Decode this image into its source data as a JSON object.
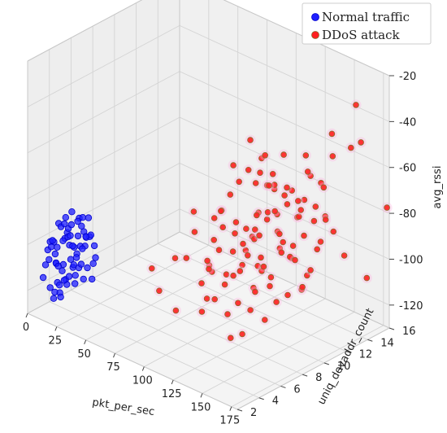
{
  "chart_data": {
    "type": "scatter",
    "projection": "3d",
    "grid": true,
    "legend_position": "top-right",
    "axes": {
      "x": {
        "label": "pkt_per_sec",
        "range": [
          0,
          180
        ],
        "ticks": [
          0,
          25,
          50,
          75,
          100,
          125,
          150,
          175
        ]
      },
      "y": {
        "label": "uniq_devaddr_count",
        "range": [
          2,
          16
        ],
        "ticks": [
          2,
          4,
          6,
          8,
          10,
          12,
          14,
          16
        ]
      },
      "z": {
        "label": "avg_rssi",
        "range": [
          -130,
          -20
        ],
        "ticks": [
          -120,
          -100,
          -80,
          -60,
          -40,
          -20
        ]
      }
    },
    "series": [
      {
        "name": "Normal traffic",
        "color": "#1f1fff",
        "edge_color": "#0000cc",
        "points": [
          [
            10,
            3,
            -119
          ],
          [
            14,
            4,
            -117
          ],
          [
            6,
            4,
            -112
          ],
          [
            19,
            3,
            -121
          ],
          [
            8,
            5,
            -106
          ],
          [
            16,
            5,
            -114
          ],
          [
            11,
            3,
            -101
          ],
          [
            21,
            4,
            -109
          ],
          [
            4,
            3,
            -116
          ],
          [
            13,
            6,
            -104
          ],
          [
            18,
            4,
            -97
          ],
          [
            9,
            4,
            -124
          ],
          [
            15,
            3,
            -107
          ],
          [
            7,
            5,
            -99
          ],
          [
            20,
            5,
            -118
          ],
          [
            12,
            4,
            -111
          ],
          [
            17,
            6,
            -102
          ],
          [
            5,
            4,
            -108
          ],
          [
            22,
            3,
            -113
          ],
          [
            10,
            6,
            -96
          ],
          [
            14,
            3,
            -120
          ],
          [
            8,
            3,
            -103
          ],
          [
            19,
            5,
            -105
          ],
          [
            16,
            4,
            -98
          ],
          [
            11,
            5,
            -115
          ],
          [
            6,
            3,
            -110
          ],
          [
            13,
            4,
            -93
          ],
          [
            21,
            6,
            -111
          ],
          [
            9,
            6,
            -100
          ],
          [
            18,
            3,
            -116
          ],
          [
            12,
            5,
            -106
          ],
          [
            15,
            5,
            -94
          ],
          [
            7,
            4,
            -120
          ],
          [
            20,
            4,
            -101
          ],
          [
            10,
            4,
            -95
          ],
          [
            17,
            3,
            -108
          ],
          [
            4,
            5,
            -104
          ],
          [
            14,
            6,
            -117
          ],
          [
            22,
            5,
            -99
          ],
          [
            11,
            4,
            -114
          ],
          [
            8,
            6,
            -109
          ],
          [
            19,
            4,
            -92
          ],
          [
            13,
            3,
            -123
          ],
          [
            16,
            6,
            -103
          ],
          [
            6,
            5,
            -101
          ],
          [
            12,
            3,
            -98
          ],
          [
            18,
            5,
            -112
          ],
          [
            9,
            3,
            -107
          ],
          [
            15,
            4,
            -119
          ],
          [
            21,
            3,
            -96
          ],
          [
            5,
            6,
            -113
          ],
          [
            10,
            5,
            -91
          ],
          [
            14,
            5,
            -110
          ],
          [
            17,
            4,
            -115
          ],
          [
            7,
            6,
            -97
          ],
          [
            20,
            6,
            -106
          ],
          [
            11,
            6,
            -102
          ],
          [
            13,
            5,
            -118
          ],
          [
            8,
            4,
            -94
          ],
          [
            16,
            3,
            -100
          ],
          [
            19,
            6,
            -114
          ],
          [
            12,
            6,
            -108
          ],
          [
            4,
            4,
            -103
          ],
          [
            22,
            4,
            -117
          ],
          [
            9,
            5,
            -112
          ],
          [
            15,
            6,
            -95
          ],
          [
            18,
            6,
            -121
          ],
          [
            6,
            6,
            -105
          ],
          [
            10,
            3,
            -99
          ],
          [
            14,
            4,
            -90
          ]
        ]
      },
      {
        "name": "DDoS attack",
        "color": "#ff2020",
        "edge_color": "#8a6a2a",
        "points": [
          [
            130,
            9,
            -81
          ],
          [
            112,
            11,
            -70
          ],
          [
            145,
            8,
            -93
          ],
          [
            98,
            12,
            -57
          ],
          [
            156,
            7,
            -86
          ],
          [
            123,
            10,
            -101
          ],
          [
            138,
            13,
            -64
          ],
          [
            104,
            9,
            -111
          ],
          [
            149,
            11,
            -76
          ],
          [
            117,
            6,
            -90
          ],
          [
            160,
            10,
            -68
          ],
          [
            92,
            10,
            -84
          ],
          [
            134,
            7,
            -107
          ],
          [
            108,
            13,
            -72
          ],
          [
            142,
            9,
            -59
          ],
          [
            126,
            12,
            -95
          ],
          [
            153,
            13,
            -80
          ],
          [
            100,
            8,
            -101
          ],
          [
            118,
            8,
            -66
          ],
          [
            147,
            6,
            -115
          ],
          [
            111,
            14,
            -87
          ],
          [
            136,
            11,
            -52
          ],
          [
            95,
            11,
            -91
          ],
          [
            158,
            9,
            -103
          ],
          [
            121,
            7,
            -77
          ],
          [
            131,
            14,
            -70
          ],
          [
            103,
            7,
            -118
          ],
          [
            144,
            12,
            -88
          ],
          [
            115,
            10,
            -61
          ],
          [
            152,
            8,
            -98
          ],
          [
            127,
            6,
            -83
          ],
          [
            97,
            13,
            -74
          ],
          [
            139,
            10,
            -113
          ],
          [
            109,
            11,
            -94
          ],
          [
            161,
            12,
            -63
          ],
          [
            124,
            13,
            -105
          ],
          [
            133,
            8,
            -89
          ],
          [
            106,
            6,
            -80
          ],
          [
            150,
            14,
            -57
          ],
          [
            119,
            9,
            -99
          ],
          [
            141,
            7,
            -73
          ],
          [
            93,
            9,
            -108
          ],
          [
            128,
            11,
            -67
          ],
          [
            155,
            10,
            -91
          ],
          [
            113,
            12,
            -85
          ],
          [
            137,
            6,
            -119
          ],
          [
            102,
            10,
            -62
          ],
          [
            146,
            13,
            -96
          ],
          [
            122,
            8,
            -82
          ],
          [
            157,
            7,
            -109
          ],
          [
            110,
            8,
            -75
          ],
          [
            132,
            12,
            -100
          ],
          [
            99,
            6,
            -93
          ],
          [
            143,
            11,
            -66
          ],
          [
            116,
            14,
            -104
          ],
          [
            151,
            9,
            -78
          ],
          [
            125,
            7,
            -114
          ],
          [
            105,
            12,
            -87
          ],
          [
            140,
            14,
            -71
          ],
          [
            120,
            11,
            -56
          ],
          [
            159,
            11,
            -97
          ],
          [
            96,
            7,
            -76
          ],
          [
            135,
            9,
            -92
          ],
          [
            114,
            7,
            -110
          ],
          [
            148,
            10,
            -61
          ],
          [
            129,
            13,
            -86
          ],
          [
            101,
            11,
            -99
          ],
          [
            154,
            12,
            -73
          ],
          [
            118,
            13,
            -79
          ],
          [
            138,
            8,
            -102
          ],
          [
            107,
            10,
            -68
          ],
          [
            145,
            6,
            -88
          ],
          [
            126,
            9,
            -117
          ],
          [
            162,
            8,
            -81
          ],
          [
            94,
            12,
            -106
          ],
          [
            131,
            10,
            -64
          ],
          [
            111,
            9,
            -95
          ],
          [
            149,
            13,
            -92
          ],
          [
            123,
            6,
            -70
          ],
          [
            100,
            14,
            -83
          ],
          [
            142,
            12,
            -112
          ],
          [
            117,
            11,
            -58
          ],
          [
            156,
            11,
            -100
          ],
          [
            135,
            13,
            -77
          ],
          [
            104,
            8,
            -89
          ],
          [
            130,
            7,
            -96
          ],
          [
            147,
            9,
            -69
          ],
          [
            114,
            13,
            -103
          ],
          [
            98,
            8,
            -116
          ],
          [
            160,
            13,
            -85
          ],
          [
            120,
            10,
            -90
          ],
          [
            139,
            12,
            -74
          ],
          [
            109,
            7,
            -98
          ],
          [
            152,
            11,
            -106
          ],
          [
            127,
            14,
            -62
          ],
          [
            96,
            10,
            -111
          ],
          [
            143,
            8,
            -78
          ],
          [
            121,
            12,
            -84
          ],
          [
            158,
            6,
            -94
          ],
          [
            112,
            6,
            -101
          ],
          [
            134,
            14,
            -89
          ],
          [
            103,
            13,
            -93
          ],
          [
            150,
            7,
            -65
          ],
          [
            125,
            11,
            -108
          ],
          [
            140,
            10,
            -82
          ],
          [
            170,
            14,
            -30
          ],
          [
            175,
            13,
            -45
          ],
          [
            165,
            15,
            -50
          ],
          [
            178,
            16,
            -78
          ],
          [
            168,
            12,
            -38
          ],
          [
            172,
            11,
            -72
          ],
          [
            85,
            5,
            -108
          ],
          [
            90,
            6,
            -118
          ],
          [
            88,
            4,
            -95
          ],
          [
            80,
            7,
            -100
          ],
          [
            160,
            14,
            -98
          ],
          [
            170,
            15,
            -108
          ]
        ]
      }
    ]
  }
}
